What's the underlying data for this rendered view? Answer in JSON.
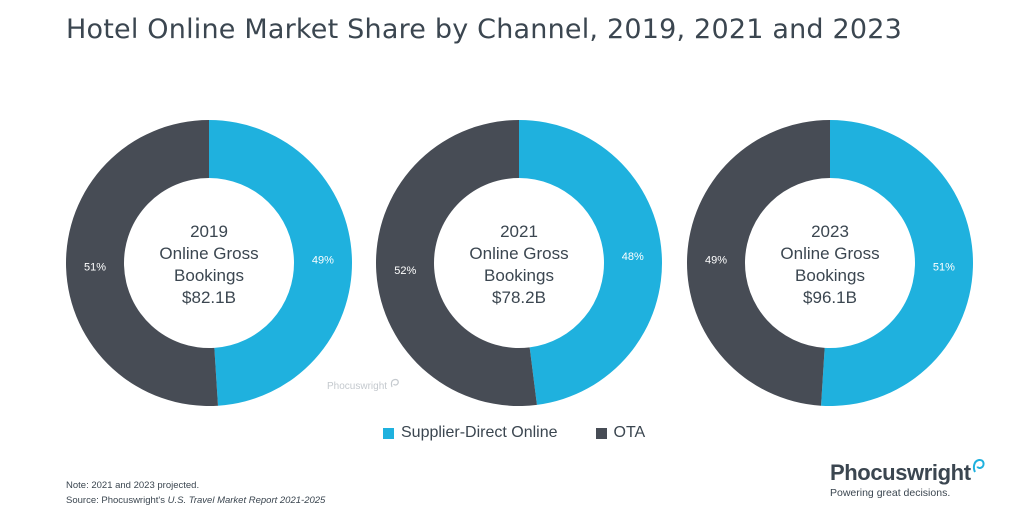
{
  "title": "Hotel Online Market Share by Channel, 2019, 2021 and 2023",
  "colors": {
    "supplier": "#1fb1de",
    "ota": "#474c55",
    "text": "#3b4650"
  },
  "chart_data": [
    {
      "type": "pie",
      "year_label": "2019",
      "line1": "Online Gross",
      "line2": "Bookings",
      "amount": "$82.1B",
      "series": [
        {
          "name": "Supplier-Direct Online",
          "value": 49,
          "label": "49%"
        },
        {
          "name": "OTA",
          "value": 51,
          "label": "51%"
        }
      ]
    },
    {
      "type": "pie",
      "year_label": "2021",
      "line1": "Online Gross",
      "line2": "Bookings",
      "amount": "$78.2B",
      "series": [
        {
          "name": "Supplier-Direct Online",
          "value": 48,
          "label": "48%"
        },
        {
          "name": "OTA",
          "value": 52,
          "label": "52%"
        }
      ]
    },
    {
      "type": "pie",
      "year_label": "2023",
      "line1": "Online Gross",
      "line2": "Bookings",
      "amount": "$96.1B",
      "series": [
        {
          "name": "Supplier-Direct Online",
          "value": 51,
          "label": "51%"
        },
        {
          "name": "OTA",
          "value": 49,
          "label": "49%"
        }
      ]
    }
  ],
  "legend": [
    {
      "label": "Supplier-Direct Online",
      "color": "#1fb1de"
    },
    {
      "label": "OTA",
      "color": "#474c55"
    }
  ],
  "watermark": "Phocuswright",
  "notes": {
    "line1": "Note: 2021 and 2023 projected.",
    "source_prefix": "Source: Phocuswright's ",
    "source_italic": "U.S. Travel Market Report 2021-2025"
  },
  "brand": {
    "name": "Phocuswright",
    "tagline": "Powering great decisions."
  }
}
